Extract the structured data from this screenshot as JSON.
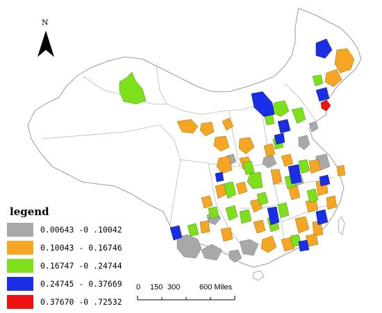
{
  "map": {
    "north_label": "N",
    "legend": {
      "title": "legend",
      "items": [
        {
          "label": "0.00643 -0 .10042",
          "color": "#a8a8a8"
        },
        {
          "label": "0.10043 - 0.16746",
          "color": "#f5a623"
        },
        {
          "label": "0.16747 -0 .24744",
          "color": "#7ee01a"
        },
        {
          "label": "0.24745 - 0.37669",
          "color": "#1a2ee6"
        },
        {
          "label": "0.37670 -0 .72532",
          "color": "#ee1111"
        }
      ]
    },
    "scale": {
      "labels": [
        "0",
        "150",
        "300",
        "600 Miles"
      ]
    }
  }
}
